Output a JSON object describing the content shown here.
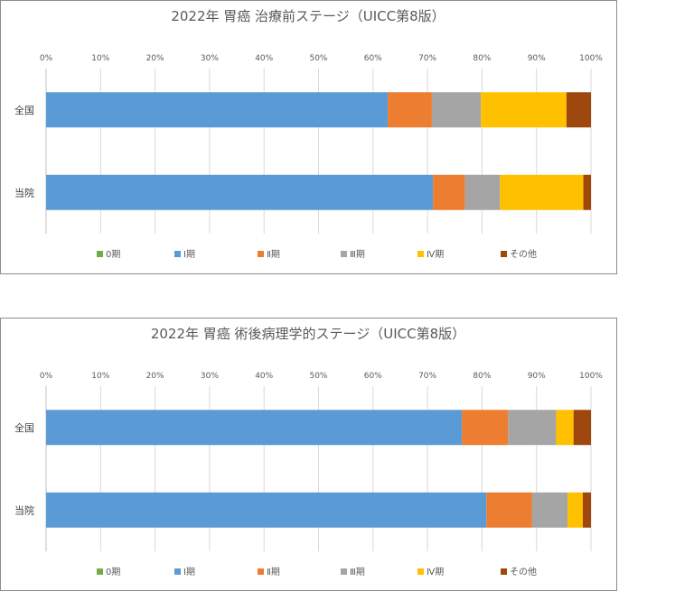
{
  "chart_data": [
    {
      "type": "bar",
      "orientation": "horizontal",
      "stacked": "percent",
      "title": "2022年 胃癌 治療前ステージ（UICC第8版）",
      "categories": [
        "全国",
        "当院"
      ],
      "xticks": [
        "0%",
        "10%",
        "20%",
        "30%",
        "40%",
        "50%",
        "60%",
        "70%",
        "80%",
        "90%",
        "100%"
      ],
      "xlim": [
        0,
        100
      ],
      "grid": true,
      "legend_position": "bottom",
      "series": [
        {
          "name": "0期",
          "color": "#70AD47",
          "values": [
            0,
            0
          ]
        },
        {
          "name": "Ⅰ期",
          "color": "#5B9BD5",
          "values": [
            62.7,
            71.0
          ]
        },
        {
          "name": "Ⅱ期",
          "color": "#ED7D31",
          "values": [
            8.1,
            5.9
          ]
        },
        {
          "name": "Ⅲ期",
          "color": "#A5A5A5",
          "values": [
            9.0,
            6.4
          ]
        },
        {
          "name": "Ⅳ期",
          "color": "#FFC000",
          "values": [
            15.7,
            15.3
          ]
        },
        {
          "name": "その他",
          "color": "#9E480E",
          "values": [
            4.5,
            1.4
          ]
        }
      ]
    },
    {
      "type": "bar",
      "orientation": "horizontal",
      "stacked": "percent",
      "title": "2022年 胃癌 術後病理学的ステージ（UICC第8版）",
      "categories": [
        "全国",
        "当院"
      ],
      "xticks": [
        "0%",
        "10%",
        "20%",
        "30%",
        "40%",
        "50%",
        "60%",
        "70%",
        "80%",
        "90%",
        "100%"
      ],
      "xlim": [
        0,
        100
      ],
      "grid": true,
      "legend_position": "bottom",
      "series": [
        {
          "name": "0期",
          "color": "#70AD47",
          "values": [
            0,
            0
          ]
        },
        {
          "name": "Ⅰ期",
          "color": "#5B9BD5",
          "values": [
            76.3,
            80.8
          ]
        },
        {
          "name": "Ⅱ期",
          "color": "#ED7D31",
          "values": [
            8.5,
            8.4
          ]
        },
        {
          "name": "Ⅲ期",
          "color": "#A5A5A5",
          "values": [
            8.8,
            6.5
          ]
        },
        {
          "name": "Ⅳ期",
          "color": "#FFC000",
          "values": [
            3.2,
            2.8
          ]
        },
        {
          "name": "その他",
          "color": "#9E480E",
          "values": [
            3.2,
            1.5
          ]
        }
      ]
    }
  ]
}
